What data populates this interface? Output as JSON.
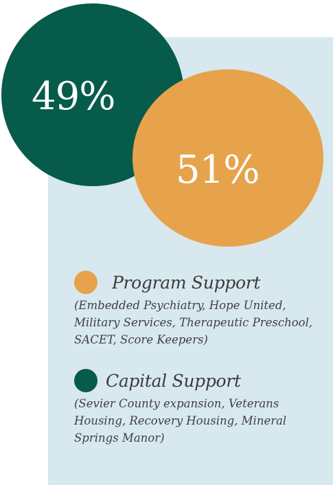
{
  "chart_data": {
    "type": "bubble",
    "title": "",
    "series": [
      {
        "name": "Capital Support",
        "value": 49,
        "label": "49%",
        "color": "#075b4b",
        "description": "(Sevier County expansion, Veterans Housing, Recovery Housing, Mineral Springs Manor)"
      },
      {
        "name": "Program Support",
        "value": 51,
        "label": "51%",
        "color": "#e6a34c",
        "description": "(Embedded Psychiatry, Hope United, Military Services, Therapeutic Preschool, SACET, Score Keepers)"
      }
    ],
    "legend": "bottom",
    "legend_order": [
      "Program Support",
      "Capital Support"
    ]
  },
  "colors": {
    "panel_background": "#d8e8ef",
    "text": "#3b3b3b"
  }
}
